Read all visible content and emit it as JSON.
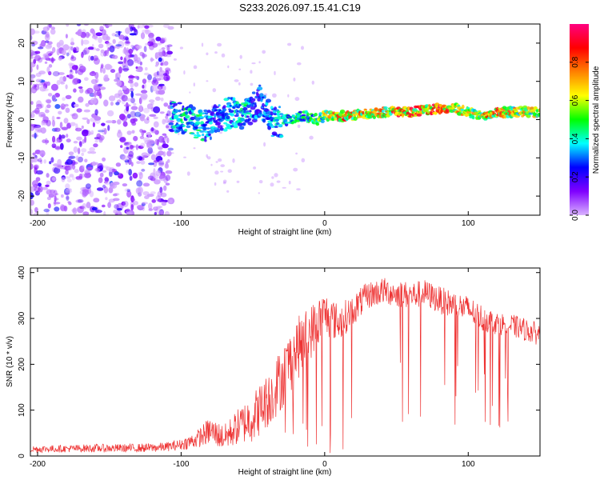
{
  "title": "S233.2026.097.15.41.C19",
  "colors": {
    "snr_line": "#ee3333",
    "colorbar_stops": [
      "#d9b3ff",
      "#8000ff",
      "#0000ff",
      "#00ffff",
      "#00ff00",
      "#ffff00",
      "#ff8000",
      "#ff0000",
      "#ff0080"
    ]
  },
  "chart_data": [
    {
      "type": "heatmap",
      "id": "spectrogram",
      "xlabel": "Height of straight line (km)",
      "ylabel": "Frequency (Hz)",
      "xlim": [
        -205,
        150
      ],
      "ylim": [
        -25,
        25
      ],
      "xticks": [
        -200,
        -100,
        0,
        100
      ],
      "xtick_labels": [
        "-200",
        "-100",
        "0",
        "100"
      ],
      "yticks": [
        -20,
        -10,
        0,
        10,
        20
      ],
      "ytick_labels": [
        "-20",
        "-10",
        "0",
        "10",
        "20"
      ],
      "colorbar": {
        "label": "Normalized spectral amplitude",
        "range": [
          0,
          1
        ],
        "ticks": [
          0.0,
          0.2,
          0.4,
          0.6,
          0.8
        ],
        "tick_labels": [
          "0.0",
          "0.2",
          "0.4",
          "0.6",
          "0.8"
        ]
      },
      "noise_region_x": [
        -205,
        -107
      ],
      "trace": {
        "x": [
          -107,
          -95,
          -85,
          -75,
          -65,
          -55,
          -45,
          -35,
          -25,
          -15,
          -5,
          0,
          10,
          20,
          40,
          60,
          80,
          90,
          100,
          110,
          120,
          130,
          150
        ],
        "freq": [
          1,
          0,
          -2,
          0,
          2,
          1,
          5,
          -1,
          0,
          1,
          0,
          1,
          1,
          1,
          2,
          2,
          3,
          3,
          2,
          1,
          2,
          2,
          2
        ],
        "amplitude": [
          0.35,
          0.45,
          0.4,
          0.3,
          0.35,
          0.4,
          0.3,
          0.35,
          0.4,
          0.45,
          0.5,
          0.6,
          0.8,
          0.7,
          0.75,
          0.8,
          0.85,
          0.7,
          0.65,
          0.7,
          0.75,
          0.7,
          0.6
        ]
      }
    },
    {
      "type": "line",
      "id": "snr",
      "xlabel": "Height of straight line (km)",
      "ylabel": "SNR (10 * v/v)",
      "xlim": [
        -205,
        150
      ],
      "ylim": [
        0,
        410
      ],
      "xticks": [
        -200,
        -100,
        0,
        100
      ],
      "xtick_labels": [
        "-200",
        "-100",
        "0",
        "100"
      ],
      "yticks": [
        0,
        100,
        200,
        300,
        400
      ],
      "ytick_labels": [
        "0",
        "100",
        "200",
        "300",
        "400"
      ],
      "series": [
        {
          "name": "SNR",
          "x": [
            -205,
            -180,
            -160,
            -140,
            -120,
            -110,
            -100,
            -90,
            -80,
            -70,
            -60,
            -50,
            -40,
            -30,
            -20,
            -10,
            0,
            10,
            20,
            30,
            40,
            50,
            60,
            70,
            80,
            90,
            100,
            110,
            120,
            130,
            140,
            150
          ],
          "values": [
            15,
            16,
            17,
            17,
            18,
            20,
            25,
            35,
            55,
            40,
            65,
            85,
            120,
            170,
            230,
            270,
            310,
            290,
            320,
            350,
            360,
            355,
            350,
            355,
            340,
            330,
            320,
            300,
            290,
            285,
            275,
            265
          ],
          "noise_amplitude": [
            8,
            8,
            9,
            9,
            10,
            10,
            12,
            18,
            30,
            28,
            40,
            55,
            60,
            70,
            70,
            60,
            50,
            40,
            35,
            30,
            30,
            30,
            30,
            30,
            30,
            30,
            30,
            30,
            25,
            25,
            25,
            25
          ]
        }
      ]
    }
  ]
}
